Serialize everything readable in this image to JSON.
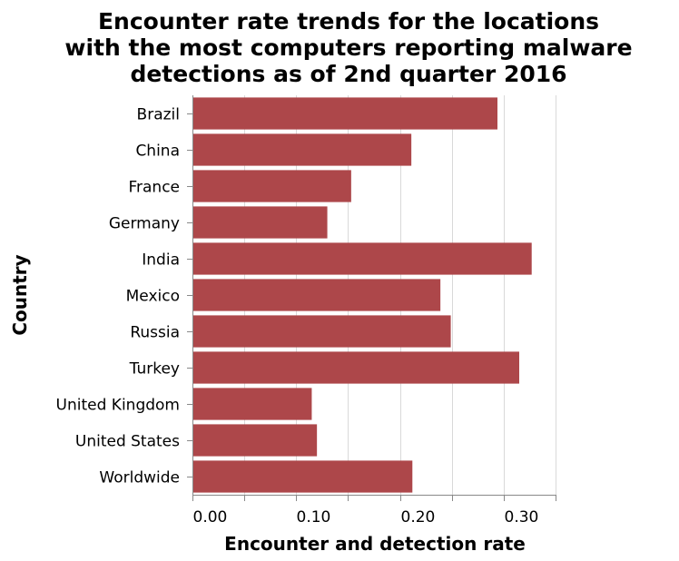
{
  "chart_data": {
    "type": "bar",
    "orientation": "horizontal",
    "title": [
      "Encounter rate trends for the locations",
      "with the most computers reporting malware",
      "detections as of 2nd quarter 2016"
    ],
    "xlabel": "Encounter and detection rate",
    "ylabel": "Country",
    "categories": [
      "Brazil",
      "China",
      "France",
      "Germany",
      "India",
      "Mexico",
      "Russia",
      "Turkey",
      "United Kingdom",
      "United States",
      "Worldwide"
    ],
    "values": [
      0.294,
      0.211,
      0.153,
      0.13,
      0.327,
      0.239,
      0.249,
      0.315,
      0.115,
      0.12,
      0.212
    ],
    "xlim": [
      0,
      0.35
    ],
    "xticks": [
      0.0,
      0.05,
      0.1,
      0.15,
      0.2,
      0.25,
      0.3,
      0.35
    ],
    "xtick_labels": [
      "0.00",
      "",
      "0.10",
      "",
      "0.20",
      "",
      "0.30",
      ""
    ],
    "grid": true,
    "bar_color": "#ad474a"
  }
}
